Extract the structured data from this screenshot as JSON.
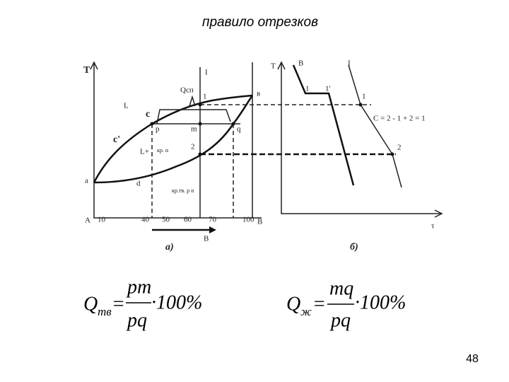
{
  "title": "правило отрезков",
  "diagram_a": {
    "axis_t": "T",
    "line_label": "I",
    "q_label": "Qсп",
    "point_1": "1",
    "point_b": "в",
    "region_l": "L",
    "point_c": "c",
    "point_p": "p",
    "point_m": "m",
    "point_q": "q",
    "curve_c": "c'",
    "region_l_alpha": "L+",
    "region_l_alpha_sub": "кр. α",
    "point_2": "2",
    "point_a": "a",
    "point_d": "d",
    "region_solid": "кр.тв. р α",
    "axis_start": "A",
    "axis_ticks": [
      10,
      40,
      50,
      60,
      70,
      100
    ],
    "axis_end": "B",
    "arrow_label": "B",
    "caption": "а)"
  },
  "diagram_b": {
    "axis_t": "T",
    "curve_b": "B",
    "curve_i": "I",
    "point_1": "1",
    "point_1p": "1'",
    "point_1i": "1",
    "rule": "C = 2 - 1 + 2 = 1",
    "point_2": "2",
    "axis_tau": "τ",
    "caption": "б)"
  },
  "formulas": [
    {
      "symbol": "Q",
      "subscript": "тв",
      "equals": "=",
      "numerator": "pm",
      "denominator": "pq",
      "multiplier": "·100%"
    },
    {
      "symbol": "Q",
      "subscript": "ж",
      "equals": "=",
      "numerator": "mq",
      "denominator": "pq",
      "multiplier": "·100%"
    }
  ],
  "page_number": 48
}
